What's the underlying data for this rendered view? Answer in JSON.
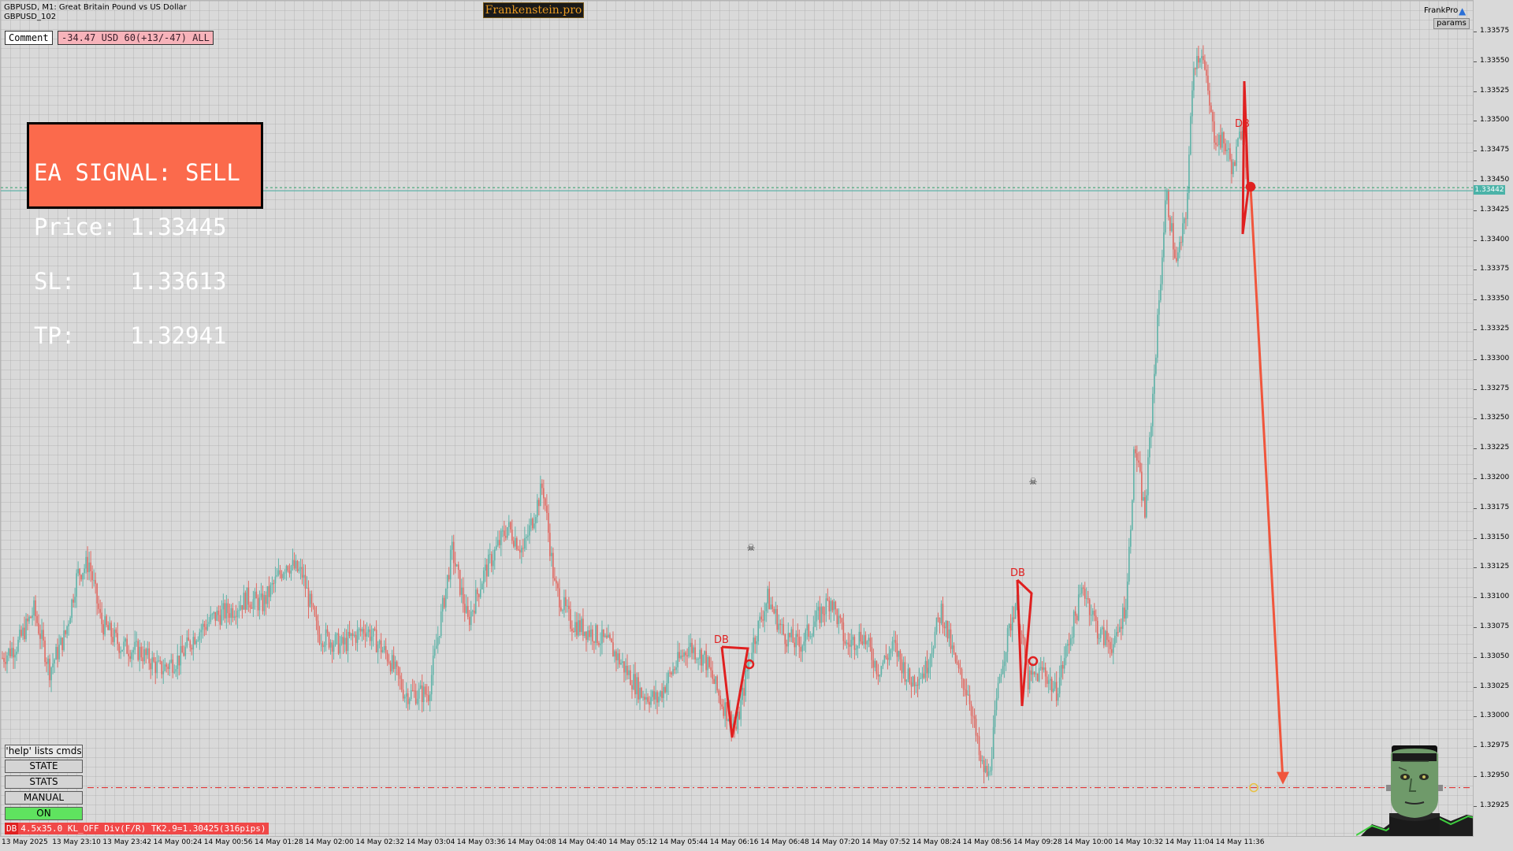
{
  "header": {
    "symbol_line_1": "GBPUSD, M1:  Great Britain Pound vs US Dollar",
    "symbol_line_2": "GBPUSD_102",
    "brand_logo": "Frankenstein.pro",
    "frankpro_label": "FrankPro",
    "frankpro_icon": "graduation-cap-icon",
    "params_label": "params"
  },
  "comment": {
    "label": "Comment",
    "value": "-34.47 USD 60(+13/-47) ALL"
  },
  "signal": {
    "line1": "EA SIGNAL: SELL",
    "line2": "Price: 1.33445",
    "line3": "SL:    1.33613",
    "line4": "TP:    1.32941",
    "bg_color": "#fb6a4c"
  },
  "buttons": {
    "help": "'help' lists cmds",
    "state": "STATE",
    "stats": "STATS",
    "manual": "MANUAL",
    "on": "ON"
  },
  "status": {
    "badge": "DB",
    "text": "4.5x35.0 KL_OFF Div(F/R) TK2.9=1.30425(316pips)"
  },
  "price_axis": {
    "labels": [
      "1.33575",
      "1.33550",
      "1.33525",
      "1.33500",
      "1.33475",
      "1.33450",
      "1.33425",
      "1.33400",
      "1.33375",
      "1.33350",
      "1.33325",
      "1.33300",
      "1.33275",
      "1.33250",
      "1.33225",
      "1.33200",
      "1.33175",
      "1.33150",
      "1.33125",
      "1.33100",
      "1.33075",
      "1.33050",
      "1.33025",
      "1.33000",
      "1.32975",
      "1.32950",
      "1.32925"
    ],
    "current_price": "1.33442"
  },
  "time_axis": {
    "labels": [
      "13 May 2025",
      "13 May 23:10",
      "13 May 23:42",
      "14 May 00:24",
      "14 May 00:56",
      "14 May 01:28",
      "14 May 02:00",
      "14 May 02:32",
      "14 May 03:04",
      "14 May 03:36",
      "14 May 04:08",
      "14 May 04:40",
      "14 May 05:12",
      "14 May 05:44",
      "14 May 06:16",
      "14 May 06:48",
      "14 May 07:20",
      "14 May 07:52",
      "14 May 08:24",
      "14 May 08:56",
      "14 May 09:28",
      "14 May 10:00",
      "14 May 10:32",
      "14 May 11:04",
      "14 May 11:36"
    ]
  },
  "chart_data": {
    "type": "candlestick",
    "symbol": "GBPUSD",
    "timeframe": "M1",
    "ylim": [
      1.3291,
      1.3359
    ],
    "up_color": "#5fb3a8",
    "down_color": "#e06a63",
    "close_path": [
      [
        0,
        1.3305
      ],
      [
        20,
        1.33062
      ],
      [
        40,
        1.3309
      ],
      [
        60,
        1.3304
      ],
      [
        80,
        1.3307
      ],
      [
        95,
        1.3312
      ],
      [
        110,
        1.3313
      ],
      [
        125,
        1.3308
      ],
      [
        150,
        1.3306
      ],
      [
        175,
        1.33055
      ],
      [
        200,
        1.3304
      ],
      [
        225,
        1.3305
      ],
      [
        245,
        1.3307
      ],
      [
        270,
        1.33085
      ],
      [
        290,
        1.3309
      ],
      [
        310,
        1.331
      ],
      [
        330,
        1.33095
      ],
      [
        360,
        1.3313
      ],
      [
        380,
        1.3312
      ],
      [
        400,
        1.3307
      ],
      [
        430,
        1.3306
      ],
      [
        460,
        1.33075
      ],
      [
        490,
        1.3305
      ],
      [
        510,
        1.3302
      ],
      [
        540,
        1.3302
      ],
      [
        570,
        1.3314
      ],
      [
        590,
        1.3308
      ],
      [
        610,
        1.3312
      ],
      [
        640,
        1.3316
      ],
      [
        660,
        1.3314
      ],
      [
        685,
        1.33195
      ],
      [
        700,
        1.3311
      ],
      [
        720,
        1.3308
      ],
      [
        750,
        1.3307
      ],
      [
        770,
        1.3306
      ],
      [
        790,
        1.3304
      ],
      [
        810,
        1.3302
      ],
      [
        830,
        1.33015
      ],
      [
        850,
        1.3304
      ],
      [
        870,
        1.3306
      ],
      [
        890,
        1.3305
      ],
      [
        910,
        1.33015
      ],
      [
        930,
        1.3299
      ],
      [
        950,
        1.3306
      ],
      [
        970,
        1.331
      ],
      [
        990,
        1.3307
      ],
      [
        1010,
        1.3306
      ],
      [
        1030,
        1.3308
      ],
      [
        1050,
        1.331
      ],
      [
        1070,
        1.3306
      ],
      [
        1090,
        1.3307
      ],
      [
        1110,
        1.3304
      ],
      [
        1130,
        1.3306
      ],
      [
        1150,
        1.3303
      ],
      [
        1170,
        1.3304
      ],
      [
        1190,
        1.3309
      ],
      [
        1210,
        1.3304
      ],
      [
        1225,
        1.3302
      ],
      [
        1240,
        1.3296
      ],
      [
        1250,
        1.3295
      ],
      [
        1265,
        1.3304
      ],
      [
        1285,
        1.331
      ],
      [
        1300,
        1.3303
      ],
      [
        1320,
        1.3304
      ],
      [
        1335,
        1.3302
      ],
      [
        1350,
        1.3306
      ],
      [
        1370,
        1.3311
      ],
      [
        1390,
        1.3307
      ],
      [
        1410,
        1.3306
      ],
      [
        1425,
        1.331
      ],
      [
        1435,
        1.3323
      ],
      [
        1448,
        1.3317
      ],
      [
        1460,
        1.3329
      ],
      [
        1475,
        1.3344
      ],
      [
        1488,
        1.3338
      ],
      [
        1500,
        1.3342
      ],
      [
        1510,
        1.3355
      ],
      [
        1520,
        1.3356
      ],
      [
        1535,
        1.3349
      ],
      [
        1550,
        1.3348
      ],
      [
        1560,
        1.3346
      ],
      [
        1572,
        1.335
      ],
      [
        1580,
        1.3344
      ]
    ],
    "annotations": [
      {
        "label": "DB",
        "color": "#e02020"
      },
      {
        "label": "DB",
        "color": "#e02020"
      },
      {
        "label": "DB",
        "color": "#e02020"
      }
    ],
    "current_price_line": 1.33442,
    "take_profit_line": 1.32941,
    "sell_arrow_from": 1.33445,
    "sell_arrow_to": 1.32941
  }
}
